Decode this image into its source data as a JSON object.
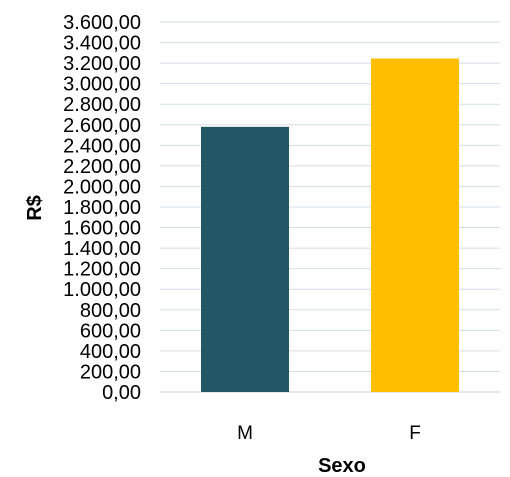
{
  "chart_data": {
    "type": "bar",
    "categories": [
      "M",
      "F"
    ],
    "values": [
      2580,
      3245
    ],
    "colors": [
      "#245766",
      "#ffbf00"
    ],
    "xlabel": "Sexo",
    "ylabel": "R$",
    "ylim": [
      0,
      3600
    ],
    "ytick_step": 200,
    "ytick_labels": [
      "0,00",
      "200,00",
      "400,00",
      "600,00",
      "800,00",
      "1.000,00",
      "1.200,00",
      "1.400,00",
      "1.600,00",
      "1.800,00",
      "2.000,00",
      "2.200,00",
      "2.400,00",
      "2.600,00",
      "2.800,00",
      "3.000,00",
      "3.200,00",
      "3.400,00",
      "3.600,00"
    ],
    "grid": true,
    "legend": "none"
  }
}
